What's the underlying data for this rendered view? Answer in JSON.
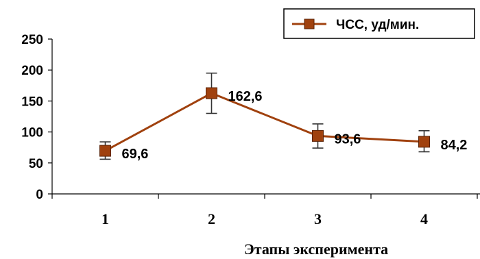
{
  "chart_data": {
    "type": "line",
    "categories": [
      "1",
      "2",
      "3",
      "4"
    ],
    "series": [
      {
        "name": "ЧСС, уд/мин.",
        "values": [
          69.6,
          162.6,
          93.6,
          84.2
        ],
        "value_labels": [
          "69,6",
          "162,6",
          "93,6",
          "84,2"
        ],
        "error_low": [
          56,
          130,
          74,
          68
        ],
        "error_high": [
          84,
          195,
          113,
          102
        ],
        "color": "#a0410e"
      }
    ],
    "title": "",
    "xlabel": "Этапы эксперимента",
    "ylabel": "",
    "ylim": [
      0,
      250
    ],
    "yticks": [
      0,
      50,
      100,
      150,
      200,
      250
    ],
    "grid": false,
    "legend": "top-right"
  }
}
